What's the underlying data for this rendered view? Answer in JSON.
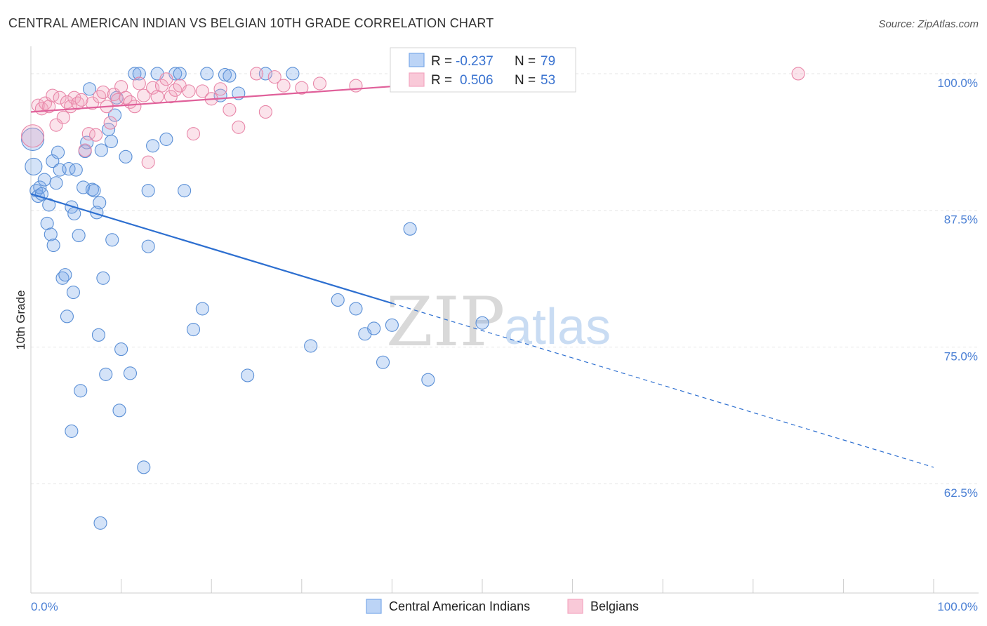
{
  "chart_data": {
    "type": "scatter",
    "title": "CENTRAL AMERICAN INDIAN VS BELGIAN 10TH GRADE CORRELATION CHART",
    "source": "Source: ZipAtlas.com",
    "xlabel": "",
    "ylabel": "10th Grade",
    "xlim": [
      0,
      100
    ],
    "ylim": [
      52.5,
      102.5
    ],
    "x_ticks": [
      "0.0%",
      "100.0%"
    ],
    "y_ticks": [
      {
        "value": 100,
        "label": "100.0%"
      },
      {
        "value": 87.5,
        "label": "87.5%"
      },
      {
        "value": 75,
        "label": "75.0%"
      },
      {
        "value": 62.5,
        "label": "62.5%"
      }
    ],
    "watermark": {
      "zip": "ZIP",
      "atlas": "atlas"
    },
    "legend": [
      {
        "r_label": "R = ",
        "r_value": "-0.237",
        "n_label": "N = ",
        "n_value": "79"
      },
      {
        "r_label": "R = ",
        "r_value": "0.506",
        "n_label": "N = ",
        "n_value": "53"
      }
    ],
    "series": [
      {
        "name": "Central American Indians",
        "color": "#7aa9e8",
        "stroke": "#5a8fd6",
        "line_color": "#2d6fd0",
        "trend": {
          "x0": 0,
          "y0": 89.0,
          "x1": 40,
          "y1": 79.0,
          "dash_x1": 100,
          "dash_y1": 64.0
        },
        "points": [
          [
            0.2,
            94.0,
            16
          ],
          [
            0.3,
            91.5,
            12
          ],
          [
            0.6,
            89.3,
            9
          ],
          [
            0.8,
            88.8,
            9
          ],
          [
            1.0,
            89.6,
            9
          ],
          [
            1.2,
            89.0,
            9
          ],
          [
            1.5,
            90.3,
            9
          ],
          [
            2.0,
            88.0,
            9
          ],
          [
            1.8,
            86.3,
            9
          ],
          [
            2.2,
            85.3,
            9
          ],
          [
            2.5,
            84.3,
            9
          ],
          [
            2.4,
            92.0,
            9
          ],
          [
            2.8,
            90.0,
            9
          ],
          [
            3.0,
            92.8,
            9
          ],
          [
            3.2,
            91.2,
            9
          ],
          [
            3.5,
            81.3,
            9
          ],
          [
            3.8,
            81.6,
            9
          ],
          [
            4.2,
            91.3,
            9
          ],
          [
            4.0,
            77.8,
            9
          ],
          [
            4.5,
            87.8,
            9
          ],
          [
            4.8,
            87.2,
            9
          ],
          [
            4.7,
            80.0,
            9
          ],
          [
            5.0,
            91.2,
            9
          ],
          [
            5.3,
            85.2,
            9
          ],
          [
            5.5,
            71.0,
            9
          ],
          [
            5.8,
            89.6,
            9
          ],
          [
            6.0,
            92.9,
            9
          ],
          [
            6.2,
            93.7,
            9
          ],
          [
            6.5,
            98.6,
            9
          ],
          [
            6.8,
            89.4,
            9
          ],
          [
            7.0,
            89.3,
            9
          ],
          [
            7.3,
            87.3,
            9
          ],
          [
            7.6,
            88.2,
            9
          ],
          [
            7.8,
            93.0,
            9
          ],
          [
            8.0,
            81.3,
            9
          ],
          [
            8.3,
            72.5,
            9
          ],
          [
            8.6,
            94.9,
            9
          ],
          [
            8.9,
            93.8,
            9
          ],
          [
            9.0,
            84.8,
            9
          ],
          [
            9.3,
            96.2,
            9
          ],
          [
            9.5,
            97.8,
            9
          ],
          [
            9.8,
            69.2,
            9
          ],
          [
            10.0,
            74.8,
            9
          ],
          [
            10.5,
            92.4,
            9
          ],
          [
            11.0,
            72.6,
            9
          ],
          [
            11.5,
            100.0,
            9
          ],
          [
            12.0,
            100.0,
            9
          ],
          [
            12.5,
            64.0,
            9
          ],
          [
            13.0,
            89.3,
            9
          ],
          [
            13.0,
            84.2,
            9
          ],
          [
            13.5,
            93.4,
            9
          ],
          [
            14.0,
            100.0,
            9
          ],
          [
            15.0,
            94.0,
            9
          ],
          [
            16.0,
            100.0,
            9
          ],
          [
            16.5,
            100.0,
            9
          ],
          [
            17.0,
            89.3,
            9
          ],
          [
            18.0,
            76.6,
            9
          ],
          [
            19.0,
            78.5,
            9
          ],
          [
            19.5,
            100.0,
            9
          ],
          [
            21.0,
            98.0,
            9
          ],
          [
            21.5,
            99.9,
            9
          ],
          [
            22.0,
            99.8,
            9
          ],
          [
            24.0,
            72.4,
            9
          ],
          [
            23.0,
            98.2,
            9
          ],
          [
            26.0,
            100.0,
            9
          ],
          [
            29.0,
            100.0,
            9
          ],
          [
            31.0,
            75.1,
            9
          ],
          [
            34.0,
            79.3,
            9
          ],
          [
            36.0,
            78.5,
            9
          ],
          [
            37.0,
            76.2,
            9
          ],
          [
            38.0,
            76.7,
            9
          ],
          [
            39.0,
            73.6,
            9
          ],
          [
            40.0,
            77.0,
            9
          ],
          [
            42.0,
            85.8,
            9
          ],
          [
            44.0,
            72.0,
            9
          ],
          [
            50.0,
            77.2,
            9
          ],
          [
            4.5,
            67.3,
            9
          ],
          [
            7.5,
            76.1,
            9
          ],
          [
            7.7,
            58.9,
            9
          ]
        ]
      },
      {
        "name": "Belgians",
        "color": "#f3a7c0",
        "stroke": "#e886a8",
        "line_color": "#e0609a",
        "trend": {
          "x0": 0,
          "y0": 96.5,
          "x1": 60,
          "y1": 100.0,
          "dash_x1": 60,
          "dash_y1": 100.0
        },
        "points": [
          [
            0.2,
            94.3,
            16
          ],
          [
            0.8,
            97.1,
            9
          ],
          [
            1.2,
            96.8,
            9
          ],
          [
            1.6,
            97.3,
            9
          ],
          [
            2.0,
            97.0,
            9
          ],
          [
            2.4,
            98.0,
            9
          ],
          [
            2.8,
            95.3,
            9
          ],
          [
            3.2,
            97.8,
            9
          ],
          [
            3.6,
            96.0,
            9
          ],
          [
            4.0,
            97.4,
            9
          ],
          [
            4.4,
            97.0,
            9
          ],
          [
            4.8,
            97.8,
            9
          ],
          [
            5.2,
            97.3,
            9
          ],
          [
            5.6,
            97.6,
            9
          ],
          [
            6.0,
            93.0,
            9
          ],
          [
            6.4,
            94.5,
            9
          ],
          [
            6.8,
            97.3,
            9
          ],
          [
            7.2,
            94.4,
            9
          ],
          [
            7.6,
            97.9,
            9
          ],
          [
            8.0,
            98.3,
            9
          ],
          [
            8.4,
            97.0,
            9
          ],
          [
            8.8,
            95.5,
            9
          ],
          [
            9.2,
            98.1,
            9
          ],
          [
            9.6,
            97.6,
            9
          ],
          [
            10.0,
            98.8,
            9
          ],
          [
            10.5,
            97.8,
            9
          ],
          [
            11.0,
            97.4,
            9
          ],
          [
            11.5,
            97.0,
            9
          ],
          [
            12.0,
            99.1,
            9
          ],
          [
            12.5,
            98.0,
            9
          ],
          [
            13.0,
            91.9,
            9
          ],
          [
            13.5,
            98.7,
            9
          ],
          [
            14.0,
            97.9,
            9
          ],
          [
            14.5,
            98.9,
            9
          ],
          [
            15.0,
            99.5,
            9
          ],
          [
            15.5,
            97.9,
            9
          ],
          [
            16.0,
            98.5,
            9
          ],
          [
            16.5,
            98.9,
            9
          ],
          [
            17.5,
            98.4,
            9
          ],
          [
            18.0,
            94.5,
            9
          ],
          [
            19.0,
            98.4,
            9
          ],
          [
            20.0,
            97.7,
            9
          ],
          [
            21.0,
            98.6,
            9
          ],
          [
            22.0,
            96.7,
            9
          ],
          [
            23.0,
            95.1,
            9
          ],
          [
            25.0,
            100.0,
            9
          ],
          [
            26.0,
            96.5,
            9
          ],
          [
            27.0,
            99.7,
            9
          ],
          [
            28.0,
            98.9,
            9
          ],
          [
            30.0,
            98.7,
            9
          ],
          [
            32.0,
            99.1,
            9
          ],
          [
            36.0,
            98.9,
            9
          ],
          [
            85.0,
            100.0,
            9
          ]
        ]
      }
    ]
  },
  "legend_bottom": [
    "Central American Indians",
    "Belgians"
  ]
}
